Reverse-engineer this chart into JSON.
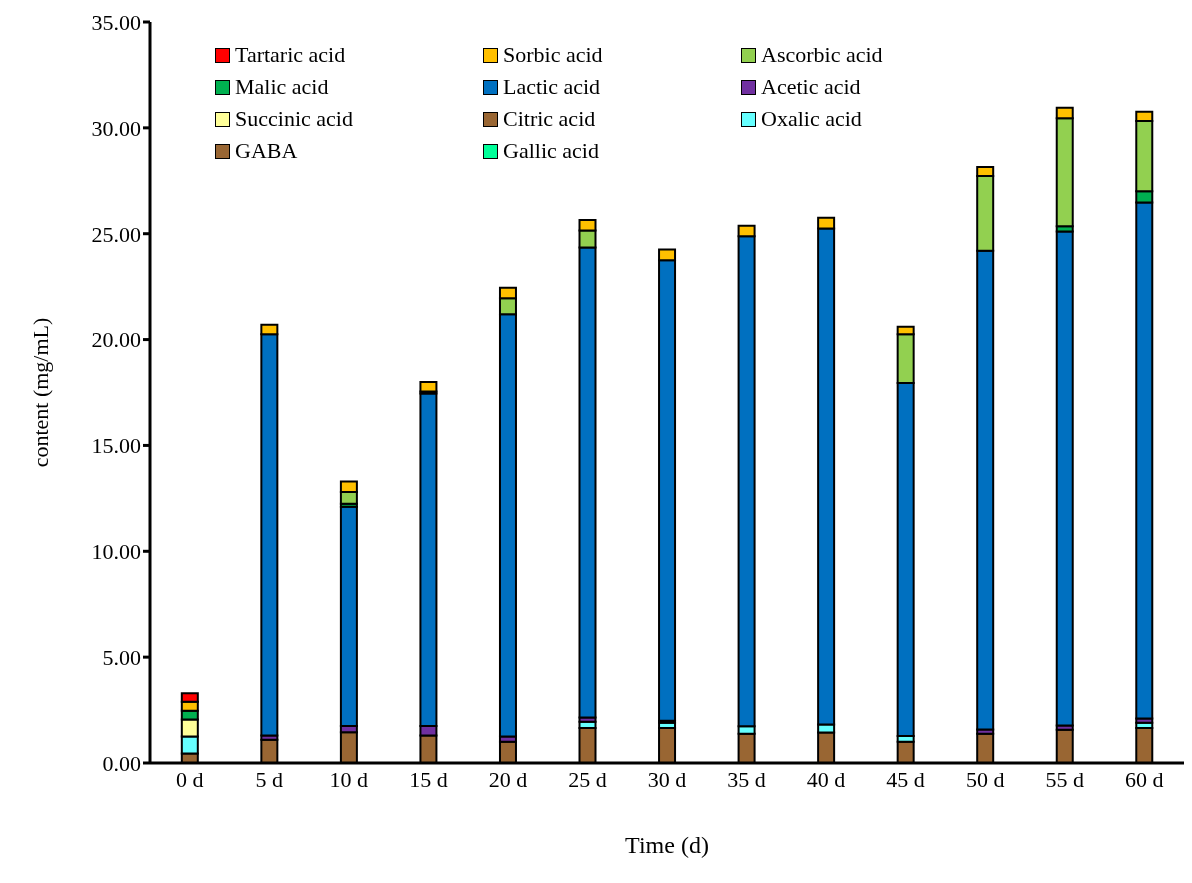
{
  "chart_data": {
    "type": "bar",
    "stacked": true,
    "xlabel": "Time (d)",
    "ylabel": "content (mg/mL)",
    "categories": [
      "0 d",
      "5 d",
      "10 d",
      "15 d",
      "20 d",
      "25 d",
      "30 d",
      "35 d",
      "40 d",
      "45 d",
      "50 d",
      "55 d",
      "60 d"
    ],
    "series": [
      {
        "name": "Gallic acid",
        "color": "#00ff99",
        "values": [
          0,
          0,
          0,
          0,
          0,
          0,
          0,
          0,
          0,
          0,
          0,
          0,
          0
        ]
      },
      {
        "name": "GABA",
        "color": "#996633",
        "values": [
          0.45,
          1.1,
          1.45,
          1.3,
          1.0,
          1.65,
          1.65,
          1.38,
          1.44,
          1.0,
          1.38,
          1.57,
          1.65
        ]
      },
      {
        "name": "Oxalic acid",
        "color": "#66ffff",
        "values": [
          0.8,
          0,
          0,
          0,
          0,
          0.3,
          0.25,
          0.35,
          0.38,
          0.28,
          0,
          0,
          0.25
        ]
      },
      {
        "name": "Citric acid",
        "color": "#996633",
        "values": [
          0,
          0,
          0,
          0,
          0,
          0,
          0,
          0,
          0,
          0,
          0,
          0,
          0
        ]
      },
      {
        "name": "Succinic acid",
        "color": "#ffff99",
        "values": [
          0.8,
          0,
          0,
          0,
          0,
          0,
          0,
          0,
          0,
          0,
          0,
          0,
          0
        ]
      },
      {
        "name": "Acetic acid",
        "color": "#7030a0",
        "values": [
          0,
          0.2,
          0.3,
          0.45,
          0.25,
          0.2,
          0.1,
          0,
          0,
          0,
          0.2,
          0.2,
          0.2
        ]
      },
      {
        "name": "Lactic acid",
        "color": "#0070c0",
        "values": [
          0,
          18.95,
          10.35,
          15.7,
          19.95,
          22.2,
          21.75,
          23.15,
          23.43,
          16.67,
          22.62,
          23.33,
          24.37
        ]
      },
      {
        "name": "Malic acid",
        "color": "#00b050",
        "values": [
          0.42,
          0,
          0.15,
          0.1,
          null,
          null,
          0,
          0,
          0,
          0,
          null,
          0.25,
          0.53
        ]
      },
      {
        "name": "Ascorbic acid",
        "color": "#92d050",
        "values": [
          0,
          0,
          0.55,
          0,
          0.75,
          0.8,
          0,
          0,
          0,
          2.3,
          3.53,
          5.1,
          3.32
        ]
      },
      {
        "name": "Sorbic acid",
        "color": "#ffc000",
        "values": [
          0.42,
          0.45,
          0.5,
          0.45,
          0.5,
          0.5,
          0.5,
          0.5,
          0.5,
          0.35,
          0.42,
          0.5,
          0.44
        ]
      },
      {
        "name": "Tartaric acid",
        "color": "#ff0000",
        "values": [
          0.4,
          0,
          0,
          0,
          0,
          0,
          0,
          0,
          0,
          0,
          0,
          0,
          0
        ]
      }
    ],
    "ylim": [
      0,
      35
    ],
    "yticks": [
      {
        "value": 0,
        "label": "0.00"
      },
      {
        "value": 5,
        "label": "5.00"
      },
      {
        "value": 10,
        "label": "10.00"
      },
      {
        "value": 15,
        "label": "15.00"
      },
      {
        "value": 20,
        "label": "20.00"
      },
      {
        "value": 25,
        "label": "25.00"
      },
      {
        "value": 30,
        "label": "30.00"
      },
      {
        "value": 35,
        "label": "35.00"
      }
    ],
    "grid": false,
    "legend": "top left"
  }
}
